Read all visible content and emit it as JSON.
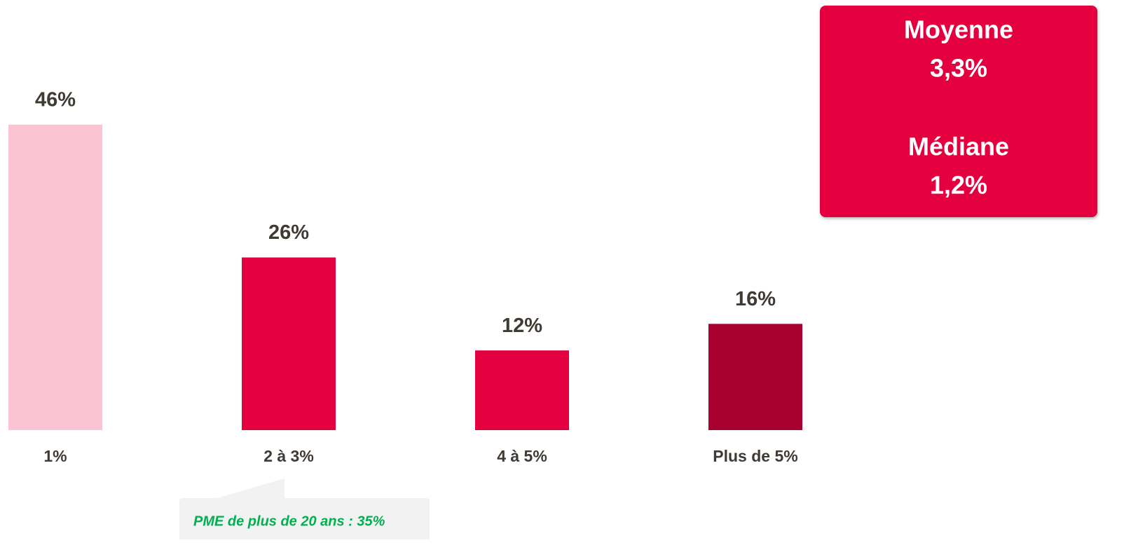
{
  "chart_data": {
    "type": "bar",
    "categories": [
      "1%",
      "2 à 3%",
      "4 à 5%",
      "Plus de 5%"
    ],
    "values": [
      46,
      26,
      12,
      16
    ],
    "value_labels": [
      "46%",
      "26%",
      "12%",
      "16%"
    ],
    "colors": [
      "#fbc4d4",
      "#e4003f",
      "#e4003f",
      "#a8002f"
    ],
    "stats": [
      {
        "label": "Moyenne",
        "value": "3,3%"
      },
      {
        "label": "Médiane",
        "value": "1,2%"
      }
    ],
    "annotation": "PME de plus de 20 ans : 35%"
  }
}
